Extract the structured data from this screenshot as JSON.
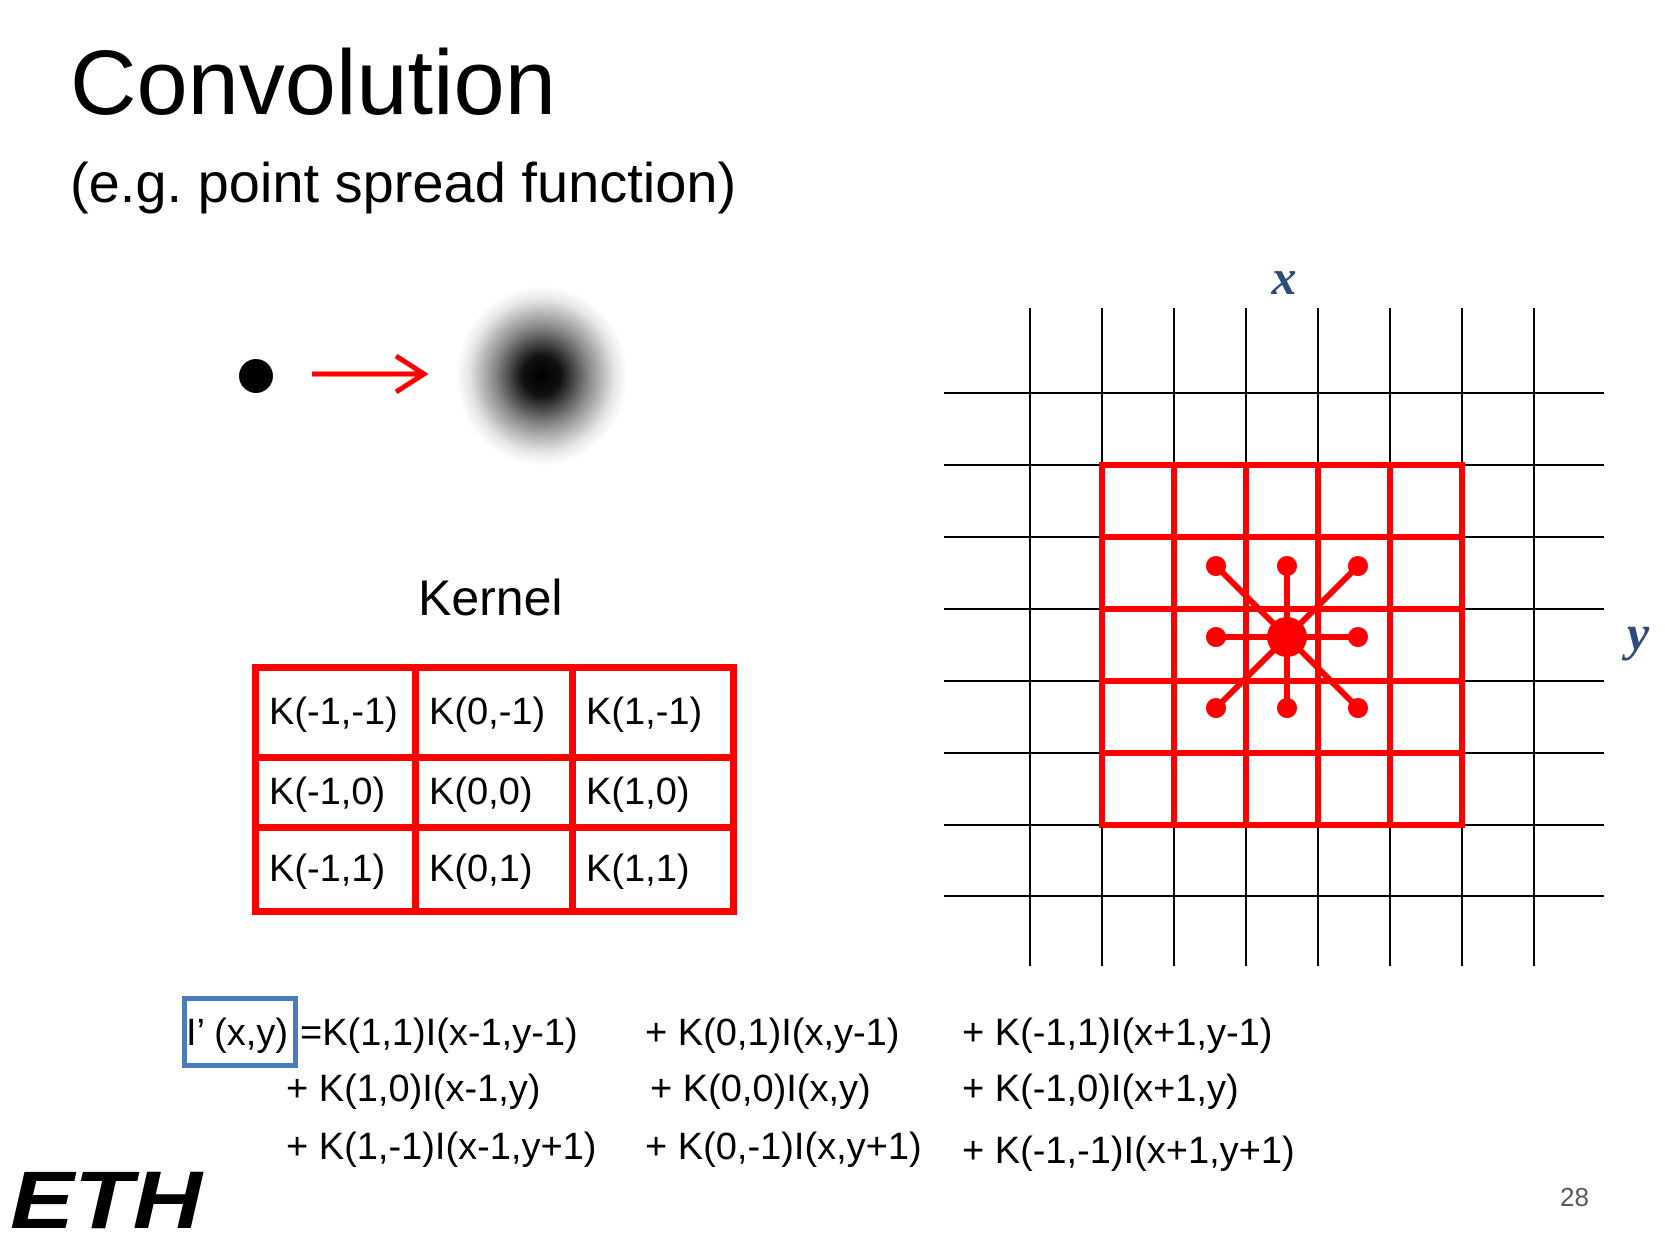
{
  "slide": {
    "title": "Convolution",
    "subtitle": "(e.g. point spread function)",
    "page_number": "28"
  },
  "kernel": {
    "label": "Kernel",
    "rows": [
      [
        "K(-1,-1)",
        "K(0,-1)",
        "K(1,-1)"
      ],
      [
        "K(-1,0)",
        "K(0,0)",
        "K(1,0)"
      ],
      [
        "K(-1,1)",
        "K(0,1)",
        "K(1,1)"
      ]
    ]
  },
  "grid": {
    "x_label": "x",
    "y_label": "y",
    "axis_label_color": "#2e4b7a",
    "highlight_color": "#ff0000"
  },
  "equation": {
    "lhs": "I’ (x,y)",
    "row1": [
      "=K(1,1)I(x-1,y-1)",
      "+ K(0,1)I(x,y-1)",
      "+ K(-1,1)I(x+1,y-1)"
    ],
    "row2": [
      "+ K(1,0)I(x-1,y)",
      "+ K(0,0)I(x,y)",
      "+ K(-1,0)I(x+1,y)"
    ],
    "row3": [
      "+ K(1,-1)I(x-1,y+1)",
      "+ K(0,-1)I(x,y+1)",
      "+ K(-1,-1)I(x+1,y+1)"
    ]
  },
  "logo": {
    "text": "ETH"
  }
}
